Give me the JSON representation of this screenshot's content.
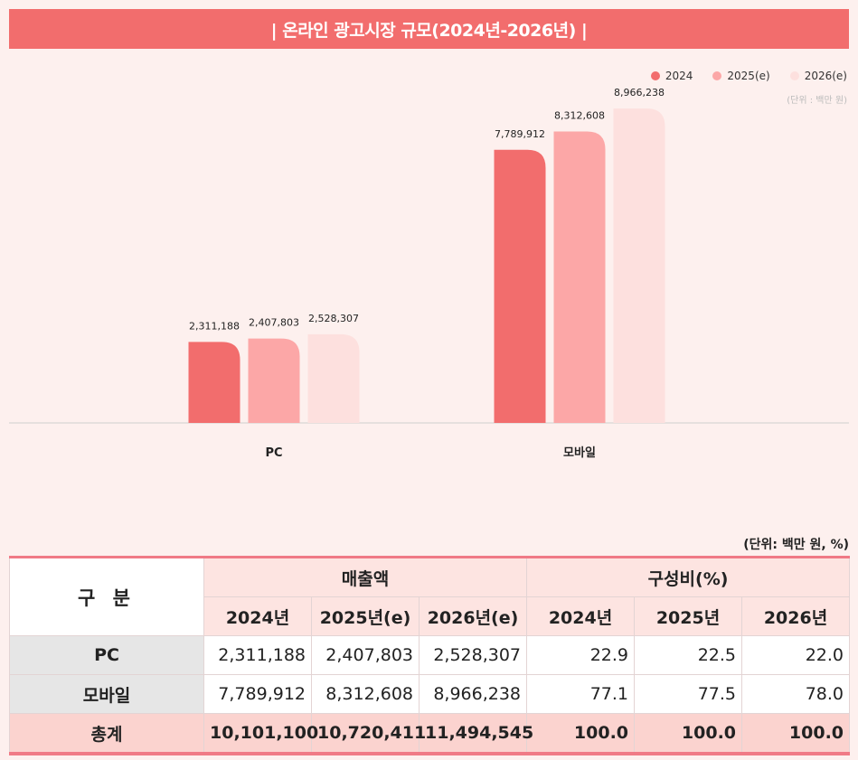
{
  "title": "| 온라인 광고시장 규모(2024년-2026년) |",
  "chart_unit": "(단위 : 백만 원)",
  "colors": {
    "banner": "#f26d6d",
    "s2024": "#f26d6d",
    "s2025": "#fca7a7",
    "s2026": "#fde0de"
  },
  "chart_data": {
    "type": "bar",
    "categories": [
      "PC",
      "모바일"
    ],
    "series": [
      {
        "name": "2024",
        "values": [
          2311188,
          7789912
        ]
      },
      {
        "name": "2025(e)",
        "values": [
          2407803,
          8312608
        ]
      },
      {
        "name": "2026(e)",
        "values": [
          2528307,
          8966238
        ]
      }
    ],
    "value_labels": [
      [
        "2,311,188",
        "7,789,912"
      ],
      [
        "2,407,803",
        "8,312,608"
      ],
      [
        "2,528,307",
        "8,966,238"
      ]
    ],
    "legend_position": "top-right",
    "grid": false,
    "ylim": [
      0,
      10000000
    ]
  },
  "table": {
    "unit": "(단위:  백만  원,  %)",
    "corner": "구 분",
    "group_headers": [
      "매출액",
      "구성비(%)"
    ],
    "sub_headers": [
      "2024년",
      "2025년(e)",
      "2026년(e)",
      "2024년",
      "2025년",
      "2026년"
    ],
    "rows": [
      {
        "label": "PC",
        "cells": [
          "2,311,188",
          "2,407,803",
          "2,528,307",
          "22.9",
          "22.5",
          "22.0"
        ]
      },
      {
        "label": "모바일",
        "cells": [
          "7,789,912",
          "8,312,608",
          "8,966,238",
          "77.1",
          "77.5",
          "78.0"
        ]
      }
    ],
    "total": {
      "label": "총계",
      "cells": [
        "10,101,100",
        "10,720,411",
        "11,494,545",
        "100.0",
        "100.0",
        "100.0"
      ]
    }
  }
}
